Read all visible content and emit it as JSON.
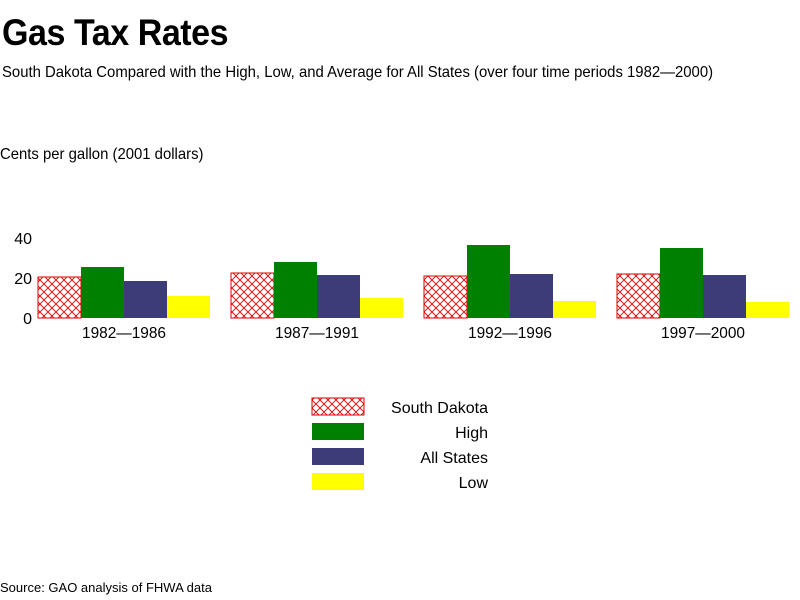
{
  "header": {
    "title": "Gas Tax Rates",
    "subtitle": "South Dakota Compared with the High, Low, and Average for All States (over four time periods 1982—2000)",
    "units_note": "Cents per gallon (2001 dollars)"
  },
  "footer": {
    "source": "Source: GAO analysis of FHWA data"
  },
  "chart_data": {
    "type": "bar",
    "title": "Gas Tax Rates",
    "subtitle": "South Dakota Compared with the High, Low, and Average for All States (over four time periods 1982—2000)",
    "ylabel": "Cents per gallon (2001 dollars)",
    "xlabel": "",
    "categories": [
      "1982—1986",
      "1987—1991",
      "1992—1996",
      "1997—2000"
    ],
    "series": [
      {
        "name": "South Dakota",
        "values": [
          20.5,
          22.5,
          21,
          22
        ],
        "color": "#e00000",
        "pattern": "crosshatch"
      },
      {
        "name": "High",
        "values": [
          25.5,
          28,
          36.5,
          35
        ],
        "color": "#008000",
        "pattern": "solid"
      },
      {
        "name": "All States",
        "values": [
          18.5,
          21.5,
          22,
          21.5
        ],
        "color": "#3c3c78",
        "pattern": "solid"
      },
      {
        "name": "Low",
        "values": [
          11,
          10,
          8.5,
          8
        ],
        "color": "#ffff00",
        "pattern": "solid"
      }
    ],
    "yticks": [
      0,
      20,
      40
    ],
    "ylim": [
      0,
      40
    ],
    "grid": false,
    "legend_position": "bottom-center"
  }
}
